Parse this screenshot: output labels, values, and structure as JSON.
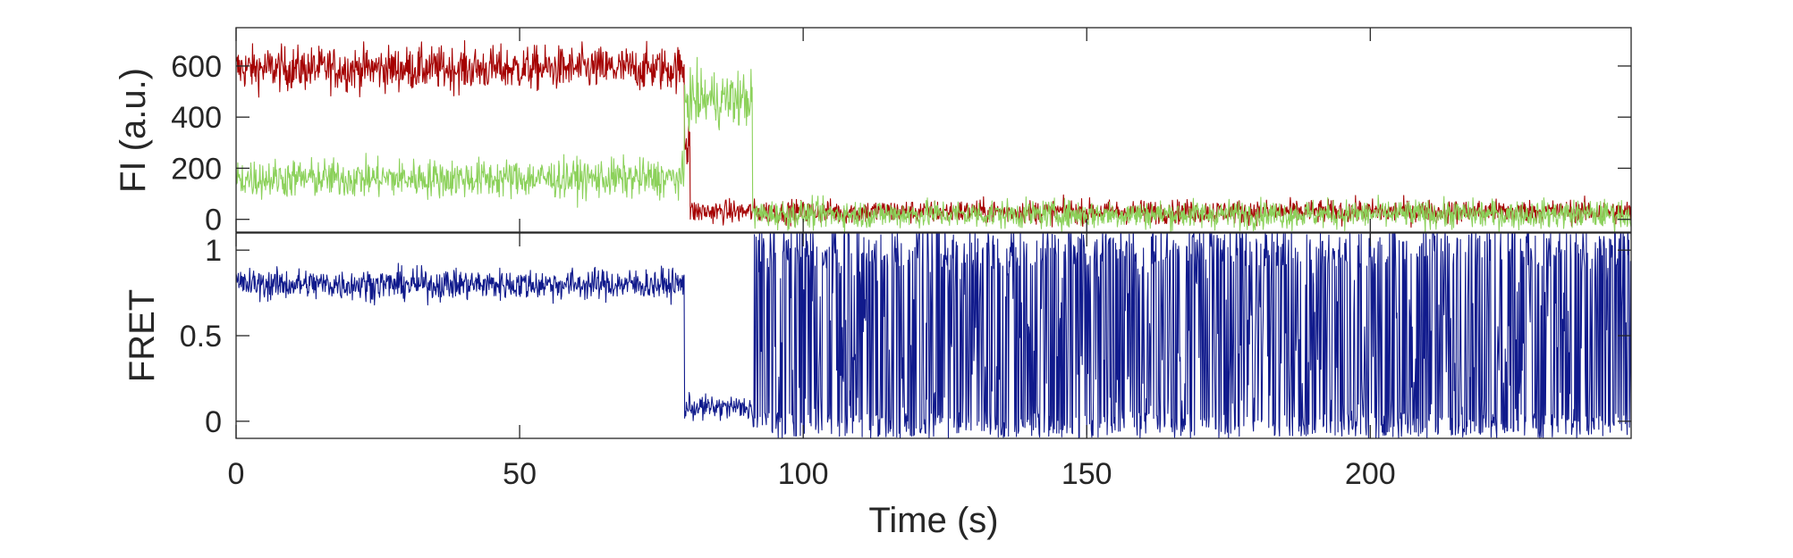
{
  "chart_data": [
    {
      "type": "line",
      "title": "",
      "xlabel": "",
      "ylabel": "FI (a.u.)",
      "xlim": [
        0,
        246
      ],
      "ylim": [
        -50,
        750
      ],
      "yticks": [
        0,
        200,
        400,
        600
      ],
      "ytick_labels": [
        "0",
        "200",
        "400",
        "600"
      ],
      "grid": false,
      "legend": "none",
      "x_step": 0.1,
      "series": [
        {
          "color": "#A50000",
          "segments": [
            {
              "x_start": 0,
              "x_end": 79,
              "level": 590,
              "noise": 85
            },
            {
              "x_start": 79,
              "x_end": 80,
              "level": 330,
              "noise": 150
            },
            {
              "x_start": 80,
              "x_end": 246,
              "level": 30,
              "noise": 45
            }
          ]
        },
        {
          "color": "#8CD15B",
          "segments": [
            {
              "x_start": 0,
              "x_end": 79,
              "level": 160,
              "noise": 75
            },
            {
              "x_start": 79,
              "x_end": 91,
              "level": 470,
              "noise": 110
            },
            {
              "x_start": 91,
              "x_end": 246,
              "level": 20,
              "noise": 55
            }
          ]
        }
      ]
    },
    {
      "type": "line",
      "title": "",
      "xlabel": "Time (s)",
      "ylabel": "FRET",
      "xlim": [
        0,
        246
      ],
      "ylim": [
        -0.1,
        1.1
      ],
      "xticks": [
        0,
        50,
        100,
        150,
        200
      ],
      "xtick_labels": [
        "0",
        "50",
        "100",
        "150",
        "200"
      ],
      "yticks": [
        0,
        0.5,
        1
      ],
      "ytick_labels": [
        "0",
        "0.5",
        "1"
      ],
      "grid": false,
      "legend": "none",
      "x_step": 0.1,
      "series": [
        {
          "color": "#101A8C",
          "segments": [
            {
              "x_start": 0,
              "x_end": 79,
              "level": 0.8,
              "noise": 0.09
            },
            {
              "x_start": 79,
              "x_end": 91,
              "level": 0.08,
              "noise": 0.07
            },
            {
              "x_start": 91,
              "x_end": 246,
              "level": "alternating 0 to 1.1",
              "noise": 0.55
            }
          ]
        }
      ]
    }
  ]
}
